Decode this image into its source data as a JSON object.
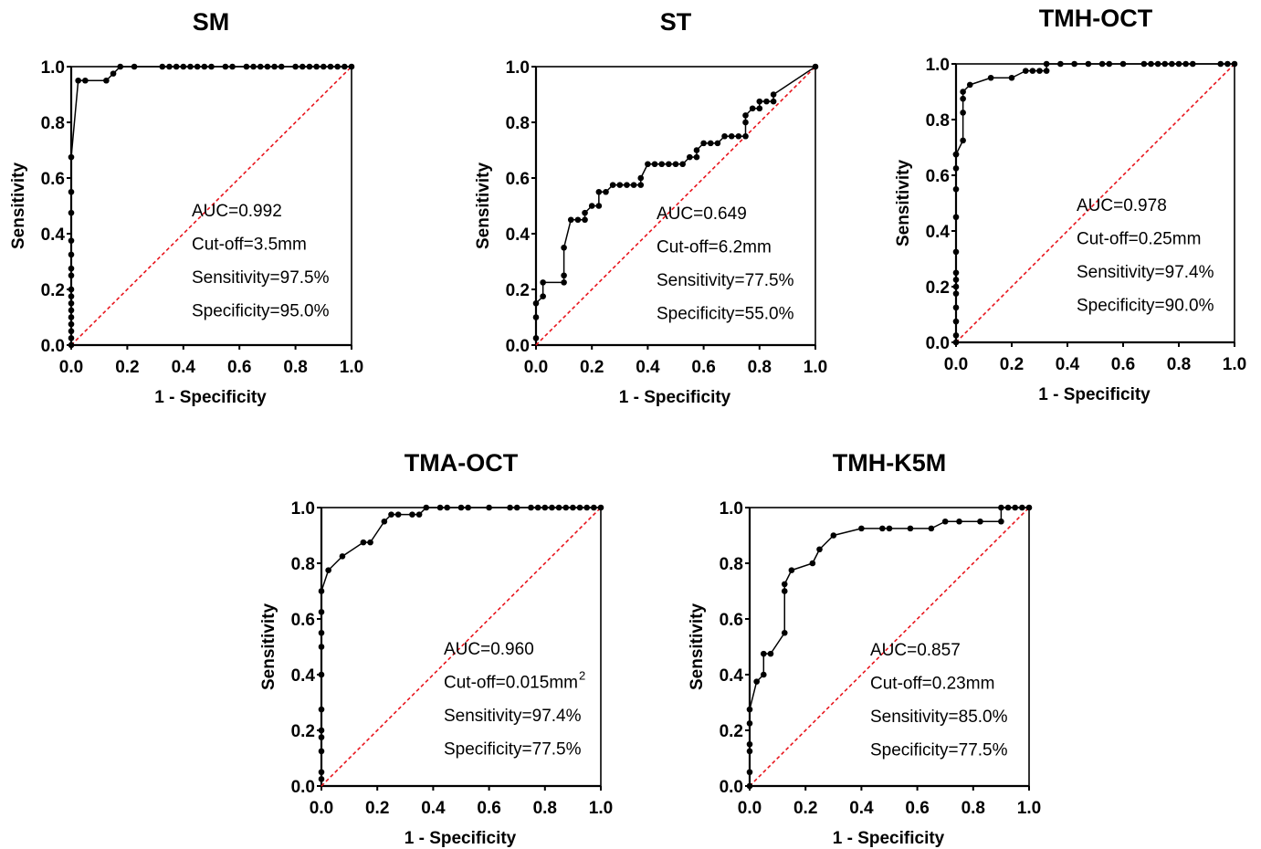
{
  "chart_data": [
    {
      "type": "line",
      "title": "SM",
      "xlabel": "1 - Specificity",
      "ylabel": "Sensitivity",
      "xlim": [
        0,
        1
      ],
      "ylim": [
        0,
        1
      ],
      "xticks": [
        "0.0",
        "0.2",
        "0.4",
        "0.6",
        "0.8",
        "1.0"
      ],
      "yticks": [
        "0.0",
        "0.2",
        "0.4",
        "0.6",
        "0.8",
        "1.0"
      ],
      "reference_line": true,
      "stats": [
        "AUC=0.992",
        "Cut-off=3.5mm",
        "Sensitivity=97.5%",
        "Specificity=95.0%"
      ],
      "x": [
        0,
        0,
        0,
        0,
        0,
        0,
        0,
        0,
        0,
        0,
        0,
        0,
        0,
        0,
        0,
        0,
        0.025,
        0.05,
        0.125,
        0.15,
        0.175,
        0.225,
        0.325,
        0.35,
        0.375,
        0.4,
        0.425,
        0.45,
        0.475,
        0.5,
        0.55,
        0.575,
        0.625,
        0.65,
        0.675,
        0.7,
        0.725,
        0.75,
        0.8,
        0.825,
        0.85,
        0.875,
        0.9,
        0.925,
        0.95,
        0.975,
        1.0
      ],
      "y": [
        0,
        0.025,
        0.05,
        0.075,
        0.1,
        0.125,
        0.15,
        0.175,
        0.2,
        0.25,
        0.275,
        0.325,
        0.375,
        0.475,
        0.55,
        0.675,
        0.95,
        0.95,
        0.95,
        0.975,
        1,
        1,
        1,
        1,
        1,
        1,
        1,
        1,
        1,
        1,
        1,
        1,
        1,
        1,
        1,
        1,
        1,
        1,
        1,
        1,
        1,
        1,
        1,
        1,
        1,
        1,
        1
      ]
    },
    {
      "type": "line",
      "title": "ST",
      "xlabel": "1 - Specificity",
      "ylabel": "Sensitivity",
      "xlim": [
        0,
        1
      ],
      "ylim": [
        0,
        1
      ],
      "xticks": [
        "0.0",
        "0.2",
        "0.4",
        "0.6",
        "0.8",
        "1.0"
      ],
      "yticks": [
        "0.0",
        "0.2",
        "0.4",
        "0.6",
        "0.8",
        "1.0"
      ],
      "reference_line": true,
      "stats": [
        "AUC=0.649",
        "Cut-off=6.2mm",
        "Sensitivity=77.5%",
        "Specificity=55.0%"
      ],
      "x": [
        0,
        0,
        0,
        0.025,
        0.025,
        0.1,
        0.1,
        0.1,
        0.125,
        0.15,
        0.175,
        0.175,
        0.2,
        0.225,
        0.225,
        0.25,
        0.275,
        0.3,
        0.325,
        0.35,
        0.375,
        0.375,
        0.4,
        0.425,
        0.45,
        0.475,
        0.5,
        0.525,
        0.55,
        0.575,
        0.575,
        0.6,
        0.625,
        0.65,
        0.675,
        0.7,
        0.725,
        0.75,
        0.75,
        0.75,
        0.775,
        0.8,
        0.8,
        0.825,
        0.85,
        0.85,
        1.0
      ],
      "y": [
        0.025,
        0.1,
        0.15,
        0.175,
        0.225,
        0.225,
        0.25,
        0.35,
        0.45,
        0.45,
        0.45,
        0.475,
        0.5,
        0.5,
        0.55,
        0.55,
        0.575,
        0.575,
        0.575,
        0.575,
        0.575,
        0.6,
        0.65,
        0.65,
        0.65,
        0.65,
        0.65,
        0.65,
        0.675,
        0.675,
        0.7,
        0.725,
        0.725,
        0.725,
        0.75,
        0.75,
        0.75,
        0.75,
        0.8,
        0.825,
        0.85,
        0.85,
        0.875,
        0.875,
        0.875,
        0.9,
        1.0
      ]
    },
    {
      "type": "line",
      "title": "TMH-OCT",
      "xlabel": "1 - Specificity",
      "ylabel": "Sensitivity",
      "xlim": [
        0,
        1
      ],
      "ylim": [
        0,
        1
      ],
      "xticks": [
        "0.0",
        "0.2",
        "0.4",
        "0.6",
        "0.8",
        "1.0"
      ],
      "yticks": [
        "0.0",
        "0.2",
        "0.4",
        "0.6",
        "0.8",
        "1.0"
      ],
      "reference_line": true,
      "stats": [
        "AUC=0.978",
        "Cut-off=0.25mm",
        "Sensitivity=97.4%",
        "Specificity=90.0%"
      ],
      "x": [
        0,
        0,
        0,
        0,
        0,
        0,
        0,
        0,
        0,
        0,
        0,
        0,
        0,
        0,
        0.025,
        0.025,
        0.025,
        0.025,
        0.05,
        0.125,
        0.2,
        0.25,
        0.275,
        0.3,
        0.325,
        0.325,
        0.375,
        0.425,
        0.475,
        0.525,
        0.55,
        0.6,
        0.675,
        0.7,
        0.725,
        0.75,
        0.775,
        0.8,
        0.825,
        0.85,
        0.95,
        0.975,
        1.0
      ],
      "y": [
        0,
        0.025,
        0.075,
        0.125,
        0.175,
        0.2,
        0.225,
        0.25,
        0.325,
        0.45,
        0.55,
        0.625,
        0.675,
        0.675,
        0.725,
        0.825,
        0.875,
        0.9,
        0.925,
        0.95,
        0.95,
        0.975,
        0.975,
        0.975,
        0.975,
        1,
        1,
        1,
        1,
        1,
        1,
        1,
        1,
        1,
        1,
        1,
        1,
        1,
        1,
        1,
        1,
        1,
        1
      ]
    },
    {
      "type": "line",
      "title": "TMA-OCT",
      "xlabel": "1 - Specificity",
      "ylabel": "Sensitivity",
      "xlim": [
        0,
        1
      ],
      "ylim": [
        0,
        1
      ],
      "xticks": [
        "0.0",
        "0.2",
        "0.4",
        "0.6",
        "0.8",
        "1.0"
      ],
      "yticks": [
        "0.0",
        "0.2",
        "0.4",
        "0.6",
        "0.8",
        "1.0"
      ],
      "reference_line": true,
      "stats": [
        "AUC=0.960",
        "Cut-off=0.015mm",
        "Sensitivity=97.4%",
        "Specificity=77.5%"
      ],
      "stat_superscript": "2",
      "x": [
        0,
        0,
        0,
        0,
        0,
        0,
        0,
        0,
        0,
        0,
        0,
        0.025,
        0.075,
        0.15,
        0.175,
        0.225,
        0.25,
        0.275,
        0.325,
        0.35,
        0.375,
        0.425,
        0.45,
        0.5,
        0.525,
        0.6,
        0.675,
        0.7,
        0.75,
        0.775,
        0.8,
        0.825,
        0.85,
        0.875,
        0.9,
        0.925,
        0.95,
        0.975,
        1.0
      ],
      "y": [
        0.025,
        0.05,
        0.125,
        0.175,
        0.2,
        0.275,
        0.4,
        0.5,
        0.55,
        0.625,
        0.7,
        0.775,
        0.825,
        0.875,
        0.875,
        0.95,
        0.975,
        0.975,
        0.975,
        0.975,
        1,
        1,
        1,
        1,
        1,
        1,
        1,
        1,
        1,
        1,
        1,
        1,
        1,
        1,
        1,
        1,
        1,
        1,
        1
      ]
    },
    {
      "type": "line",
      "title": "TMH-K5M",
      "xlabel": "1 - Specificity",
      "ylabel": "Sensitivity",
      "xlim": [
        0,
        1
      ],
      "ylim": [
        0,
        1
      ],
      "xticks": [
        "0.0",
        "0.2",
        "0.4",
        "0.6",
        "0.8",
        "1.0"
      ],
      "yticks": [
        "0.0",
        "0.2",
        "0.4",
        "0.6",
        "0.8",
        "1.0"
      ],
      "reference_line": true,
      "stats": [
        "AUC=0.857",
        "Cut-off=0.23mm",
        "Sensitivity=85.0%",
        "Specificity=77.5%"
      ],
      "x": [
        0,
        0,
        0,
        0,
        0,
        0,
        0.025,
        0.05,
        0.05,
        0.075,
        0.125,
        0.125,
        0.125,
        0.15,
        0.225,
        0.25,
        0.3,
        0.4,
        0.475,
        0.5,
        0.575,
        0.65,
        0.7,
        0.75,
        0.825,
        0.9,
        0.9,
        0.925,
        0.95,
        0.975,
        1.0
      ],
      "y": [
        0,
        0.05,
        0.125,
        0.15,
        0.225,
        0.275,
        0.375,
        0.4,
        0.475,
        0.475,
        0.55,
        0.7,
        0.725,
        0.775,
        0.8,
        0.85,
        0.9,
        0.925,
        0.925,
        0.925,
        0.925,
        0.925,
        0.95,
        0.95,
        0.95,
        0.95,
        1,
        1,
        1,
        1,
        1
      ]
    }
  ]
}
